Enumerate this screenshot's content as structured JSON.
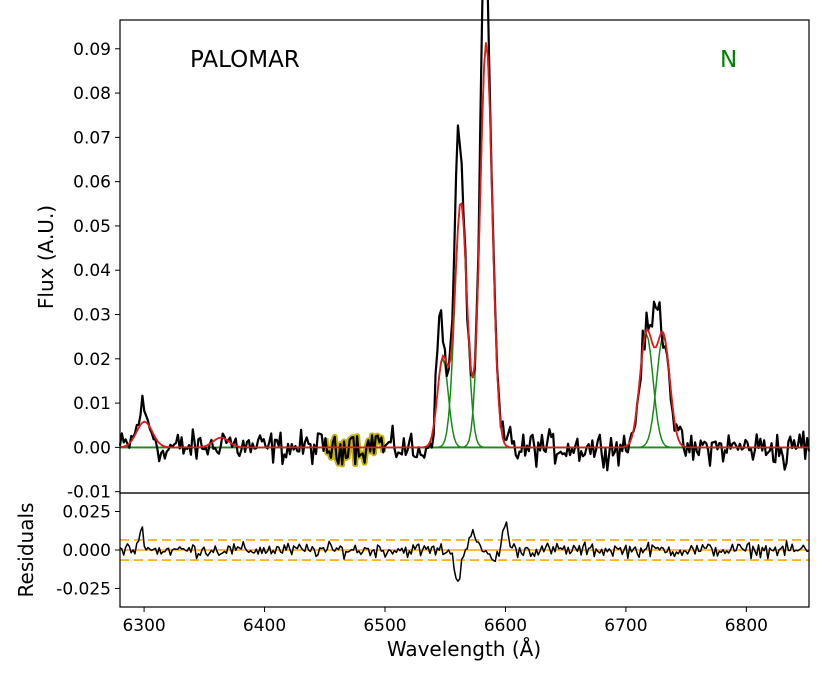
{
  "chart_data": [
    {
      "type": "line",
      "panel": "main",
      "ylabel": "Flux (A.U.)",
      "xlim": [
        6280,
        6852
      ],
      "ylim": [
        -0.0103,
        0.0965
      ],
      "yticks": [
        -0.01,
        0.0,
        0.01,
        0.02,
        0.03,
        0.04,
        0.05,
        0.06,
        0.07,
        0.08,
        0.09
      ],
      "ytick_labels": [
        "-0.01",
        "0.00",
        "0.01",
        "0.02",
        "0.03",
        "0.04",
        "0.05",
        "0.06",
        "0.07",
        "0.08",
        "0.09"
      ],
      "annotations": [
        {
          "text": "PALOMAR",
          "color": "#000000"
        },
        {
          "text": "N",
          "color": "#008000"
        }
      ],
      "colors": {
        "data": "#000000",
        "model": "#e31a1c",
        "components": "#1a8a1a",
        "masked": "#c8b400"
      },
      "masked_region": [
        6450,
        6500
      ],
      "components": [
        {
          "center": 6300.3,
          "amplitude": 0.0058,
          "sigma": 6.5
        },
        {
          "center": 6363.8,
          "amplitude": 0.0022,
          "sigma": 6.5
        },
        {
          "center": 6548.0,
          "amplitude": 0.02,
          "sigma": 4.5
        },
        {
          "center": 6563.0,
          "amplitude": 0.0555,
          "sigma": 5.0
        },
        {
          "center": 6584.0,
          "amplitude": 0.0915,
          "sigma": 5.0
        },
        {
          "center": 6717.0,
          "amplitude": 0.0255,
          "sigma": 5.5
        },
        {
          "center": 6731.0,
          "amplitude": 0.025,
          "sigma": 5.5
        }
      ],
      "features": [
        {
          "x": 6298,
          "y": 0.0105
        },
        {
          "x": 6316,
          "y": -0.007
        },
        {
          "x": 6358,
          "y": -0.006
        },
        {
          "x": 6471,
          "y": 0.0078
        },
        {
          "x": 6460,
          "y": -0.0055
        },
        {
          "x": 6493,
          "y": 0.0065
        },
        {
          "x": 6527,
          "y": -0.0065
        },
        {
          "x": 6545,
          "y": 0.0365
        },
        {
          "x": 6560,
          "y": 0.0635
        },
        {
          "x": 6582,
          "y": 0.0935
        },
        {
          "x": 6604,
          "y": 0.0085
        },
        {
          "x": 6612,
          "y": -0.0045
        },
        {
          "x": 6725,
          "y": 0.0335
        },
        {
          "x": 6756,
          "y": -0.0045
        },
        {
          "x": 6832,
          "y": -0.0085
        },
        {
          "x": 6845,
          "y": 0.0045
        }
      ]
    },
    {
      "type": "line",
      "panel": "residuals",
      "xlabel": "Wavelength (Å)",
      "ylabel": "Residuals",
      "xlim": [
        6280,
        6852
      ],
      "ylim": [
        -0.037,
        0.037
      ],
      "yticks": [
        -0.025,
        0.0,
        0.025
      ],
      "ytick_labels": [
        "-0.025",
        "0.000",
        "0.025"
      ],
      "xticks": [
        6300,
        6400,
        6500,
        6600,
        6700,
        6800
      ],
      "xtick_labels": [
        "6300",
        "6400",
        "6500",
        "6600",
        "6700",
        "6800"
      ],
      "reference_lines": [
        {
          "y": 0.0,
          "style": "solid",
          "color": "#ffa500"
        },
        {
          "y": 0.0065,
          "style": "dashed",
          "color": "#ffa500"
        },
        {
          "y": -0.0065,
          "style": "dashed",
          "color": "#ffa500"
        }
      ],
      "features": [
        {
          "x": 6298,
          "y": 0.012
        },
        {
          "x": 6560,
          "y": -0.02
        },
        {
          "x": 6572,
          "y": 0.012
        },
        {
          "x": 6590,
          "y": -0.008
        },
        {
          "x": 6600,
          "y": 0.016
        }
      ]
    }
  ]
}
